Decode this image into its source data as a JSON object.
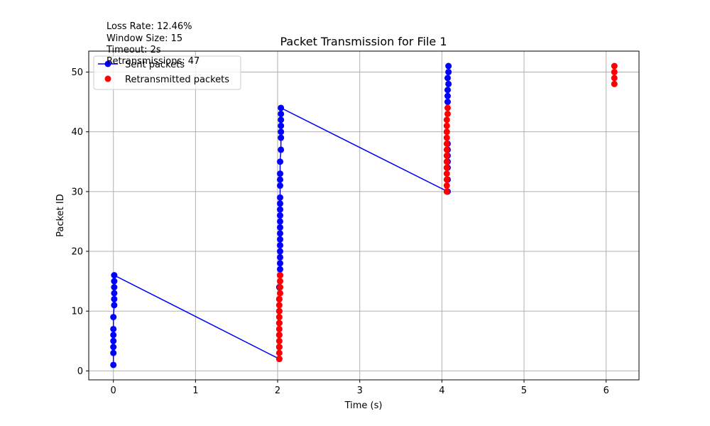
{
  "annotations": {
    "loss_rate": "Loss Rate: 12.46%",
    "window_size": "Window Size: 15",
    "timeout": "Timeout: 2s",
    "retransmissions": "Retransmissions: 47"
  },
  "colors": {
    "sent": "#0000ff",
    "retransmitted": "#ff0000",
    "grid": "#b0b0b0",
    "axes": "#000000"
  },
  "chart_data": {
    "type": "scatter",
    "title": "Packet Transmission for File 1",
    "xlabel": "Time (s)",
    "ylabel": "Packet ID",
    "xlim": [
      -0.3,
      6.4
    ],
    "ylim": [
      -1.5,
      53.5
    ],
    "xticks": [
      0,
      1,
      2,
      3,
      4,
      5,
      6
    ],
    "yticks": [
      0,
      10,
      20,
      30,
      40,
      50
    ],
    "grid": true,
    "legend_position": "top-left",
    "series": [
      {
        "name": "Sent packets",
        "style": "line-with-markers",
        "color": "#0000ff",
        "x": [
          0.0,
          0.0,
          0.0,
          0.0,
          0.0,
          0.0,
          0.0,
          0.01,
          0.01,
          0.01,
          0.01,
          0.01,
          0.01,
          2.02,
          2.02,
          2.02,
          2.02,
          2.02,
          2.02,
          2.02,
          2.03,
          2.03,
          2.03,
          2.03,
          2.03,
          2.03,
          2.03,
          2.03,
          2.03,
          2.03,
          2.03,
          2.03,
          2.03,
          2.03,
          2.03,
          2.03,
          2.03,
          2.03,
          2.04,
          2.04,
          2.04,
          2.04,
          2.04,
          2.04,
          2.04,
          4.07,
          4.07,
          4.07,
          4.07,
          4.07,
          4.07,
          4.07,
          4.07,
          4.07,
          4.07,
          4.07,
          4.08,
          4.08,
          4.08
        ],
        "y": [
          1,
          3,
          4,
          5,
          6,
          7,
          9,
          11,
          12,
          13,
          14,
          15,
          16,
          2,
          4,
          6,
          8,
          10,
          12,
          14,
          16,
          17,
          18,
          19,
          20,
          21,
          22,
          23,
          24,
          25,
          26,
          27,
          28,
          29,
          31,
          32,
          33,
          35,
          37,
          39,
          40,
          41,
          42,
          43,
          44,
          30,
          32,
          34,
          35,
          36,
          37,
          38,
          45,
          46,
          47,
          49,
          50,
          51,
          48
        ]
      },
      {
        "name": "Retransmitted packets",
        "style": "markers",
        "color": "#ff0000",
        "x": [
          2.02,
          2.02,
          2.02,
          2.02,
          2.02,
          2.02,
          2.02,
          2.02,
          2.02,
          2.02,
          2.02,
          2.03,
          2.03,
          2.03,
          2.03,
          4.06,
          4.06,
          4.06,
          4.06,
          4.06,
          4.06,
          4.06,
          4.06,
          4.06,
          4.06,
          4.06,
          4.06,
          4.06,
          4.07,
          4.07,
          6.1,
          6.1,
          6.1,
          6.1
        ],
        "y": [
          2,
          3,
          4,
          5,
          6,
          7,
          8,
          9,
          10,
          11,
          12,
          13,
          14,
          15,
          16,
          30,
          31,
          32,
          33,
          34,
          35,
          36,
          37,
          38,
          39,
          40,
          41,
          42,
          43,
          44,
          48,
          49,
          50,
          51
        ]
      }
    ]
  }
}
